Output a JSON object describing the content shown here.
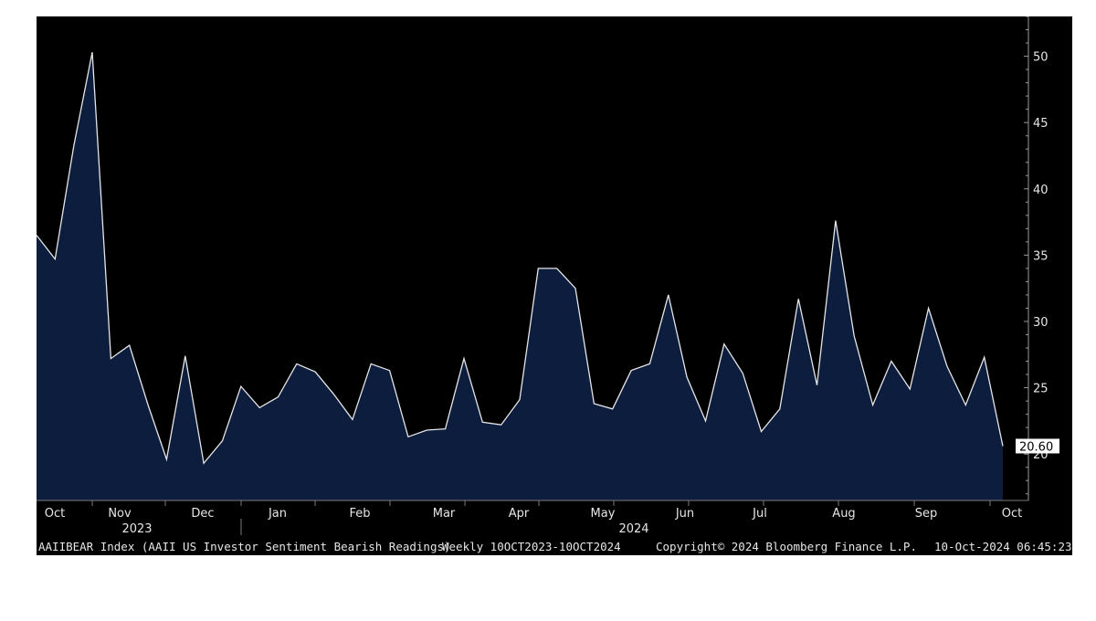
{
  "chart_data": {
    "type": "area",
    "x_labels": [
      "Oct",
      "Nov",
      "Dec",
      "Jan",
      "Feb",
      "Mar",
      "Apr",
      "May",
      "Jun",
      "Jul",
      "Aug",
      "Sep",
      "Oct"
    ],
    "year_labels": [
      "2023",
      "2024"
    ],
    "y_ticks": [
      20,
      25,
      30,
      35,
      40,
      45,
      50
    ],
    "ylim": [
      16.5,
      53
    ],
    "last_value_label": "20.60",
    "values": [
      36.5,
      34.7,
      43.2,
      50.3,
      27.2,
      28.2,
      23.7,
      19.6,
      27.4,
      19.3,
      21.0,
      25.1,
      23.5,
      24.3,
      26.8,
      26.2,
      24.5,
      22.6,
      26.8,
      26.3,
      21.3,
      21.8,
      21.9,
      27.2,
      22.4,
      22.2,
      24.1,
      34.0,
      34.0,
      32.5,
      23.8,
      23.4,
      26.3,
      26.8,
      32.0,
      25.8,
      22.5,
      28.3,
      26.1,
      21.7,
      23.4,
      31.7,
      25.2,
      37.6,
      28.9,
      23.7,
      27.0,
      24.9,
      31.0,
      26.6,
      23.7,
      27.3,
      20.6
    ],
    "colors": {
      "background": "#000000",
      "fill": "#0d1d3d",
      "line": "#e6e6e6",
      "text": "#e6e6e6"
    },
    "grid": false
  },
  "footer": {
    "ticker": "AAIIBEAR Index (AAII US Investor Sentiment Bearish Readings)",
    "frequency": "Weekly 10OCT2023-10OCT2024",
    "copyright": "Copyright© 2024 Bloomberg Finance L.P.",
    "timestamp": "10-Oct-2024 06:45:23"
  }
}
